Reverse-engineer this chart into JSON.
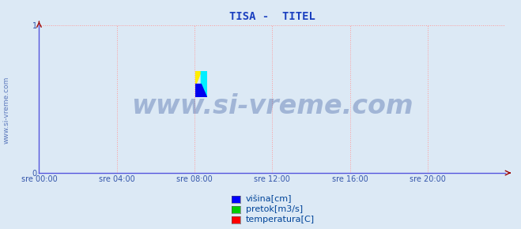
{
  "title": "TISA -  TITEL",
  "title_color": "#1a3fbf",
  "title_fontsize": 10,
  "background_color": "#dce9f5",
  "plot_bg_color": "#dce9f5",
  "grid_color": "#ff9999",
  "grid_style": ":",
  "ylim": [
    0,
    1
  ],
  "yticks": [
    0,
    1
  ],
  "xtick_labels": [
    "sre 00:00",
    "sre 04:00",
    "sre 08:00",
    "sre 12:00",
    "sre 16:00",
    "sre 20:00"
  ],
  "xtick_positions": [
    0.0,
    0.1667,
    0.3333,
    0.5,
    0.6667,
    0.8333
  ],
  "tick_color": "#3355aa",
  "tick_fontsize": 7,
  "axis_color": "#5555dd",
  "watermark_text": "www.si-vreme.com",
  "watermark_color": "#1a3f8f",
  "watermark_alpha": 0.3,
  "watermark_fontsize": 24,
  "sidewater_text": "www.si-vreme.com",
  "sidewater_color": "#3355aa",
  "sidewater_fontsize": 6.5,
  "legend_labels": [
    "višina[cm]",
    "pretok[m3/s]",
    "temperatura[C]"
  ],
  "legend_colors": [
    "#0000ff",
    "#00cc00",
    "#ff0000"
  ],
  "legend_fontsize": 8,
  "legend_color": "#004499",
  "arrow_color": "#990000",
  "icon_blue": "#0000ee",
  "icon_cyan": "#00eeff",
  "icon_yellow": "#ffee00"
}
